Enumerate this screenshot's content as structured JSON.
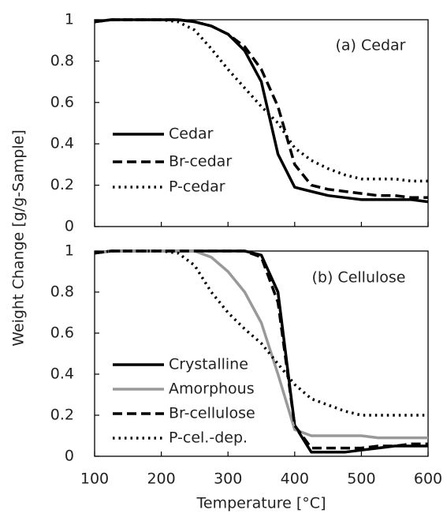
{
  "chart_data": [
    {
      "type": "line",
      "annotation": "(a) Cedar",
      "ylabel": "Weight Change [g/g-Sample]",
      "x": [
        100,
        125,
        150,
        175,
        200,
        225,
        250,
        275,
        300,
        325,
        350,
        375,
        400,
        425,
        450,
        475,
        500,
        525,
        550,
        575,
        600
      ],
      "xlim": [
        100,
        600
      ],
      "xticks": [
        100,
        200,
        300,
        400,
        500,
        600
      ],
      "ylim": [
        0,
        1
      ],
      "yticks": [
        0,
        0.2,
        0.4,
        0.6,
        0.8,
        1
      ],
      "series": [
        {
          "name": "Cedar",
          "color": "#000000",
          "linestyle": "solid",
          "values": [
            0.99,
            1,
            1,
            1,
            1,
            1,
            0.99,
            0.97,
            0.93,
            0.85,
            0.7,
            0.35,
            0.19,
            0.17,
            0.15,
            0.14,
            0.13,
            0.13,
            0.13,
            0.13,
            0.12
          ]
        },
        {
          "name": "Br-cedar",
          "color": "#000000",
          "linestyle": "dashed",
          "values": [
            0.99,
            1,
            1,
            1,
            1,
            1,
            0.99,
            0.97,
            0.93,
            0.87,
            0.76,
            0.58,
            0.3,
            0.2,
            0.18,
            0.17,
            0.16,
            0.15,
            0.15,
            0.14,
            0.14
          ]
        },
        {
          "name": "P-cedar",
          "color": "#000000",
          "linestyle": "dotted",
          "values": [
            0.99,
            1,
            1,
            1,
            1,
            0.99,
            0.95,
            0.86,
            0.76,
            0.67,
            0.58,
            0.5,
            0.38,
            0.32,
            0.28,
            0.25,
            0.23,
            0.23,
            0.23,
            0.22,
            0.22
          ]
        }
      ]
    },
    {
      "type": "line",
      "annotation": "(b) Cellulose",
      "xlabel": "Temperature [°C]",
      "x": [
        100,
        125,
        150,
        175,
        200,
        225,
        250,
        275,
        300,
        325,
        350,
        375,
        400,
        425,
        450,
        475,
        500,
        525,
        550,
        575,
        600
      ],
      "xlim": [
        100,
        600
      ],
      "xticks": [
        100,
        200,
        300,
        400,
        500,
        600
      ],
      "ylim": [
        0,
        1
      ],
      "yticks": [
        0,
        0.2,
        0.4,
        0.6,
        0.8,
        1
      ],
      "series": [
        {
          "name": "Crystalline",
          "color": "#000000",
          "linestyle": "solid",
          "values": [
            0.99,
            1,
            1,
            1,
            1,
            1,
            1,
            1,
            1,
            1,
            0.98,
            0.8,
            0.15,
            0.02,
            0.02,
            0.02,
            0.03,
            0.04,
            0.05,
            0.05,
            0.05
          ]
        },
        {
          "name": "Amorphous",
          "color": "#999999",
          "linestyle": "solid",
          "values": [
            0.99,
            1,
            1,
            1,
            1,
            1,
            1,
            0.97,
            0.9,
            0.8,
            0.65,
            0.4,
            0.13,
            0.1,
            0.1,
            0.1,
            0.1,
            0.09,
            0.09,
            0.09,
            0.09
          ]
        },
        {
          "name": "Br-cellulose",
          "color": "#000000",
          "linestyle": "dashed",
          "values": [
            0.99,
            1,
            1,
            1,
            1,
            1,
            1,
            1,
            1,
            1,
            0.97,
            0.75,
            0.15,
            0.04,
            0.04,
            0.04,
            0.04,
            0.05,
            0.05,
            0.06,
            0.06
          ]
        },
        {
          "name": "P-cel.-dep.",
          "color": "#000000",
          "linestyle": "dotted",
          "values": [
            0.99,
            1,
            1,
            1,
            1,
            0.99,
            0.93,
            0.8,
            0.7,
            0.62,
            0.55,
            0.45,
            0.35,
            0.28,
            0.25,
            0.22,
            0.2,
            0.2,
            0.2,
            0.2,
            0.2
          ]
        }
      ]
    }
  ]
}
